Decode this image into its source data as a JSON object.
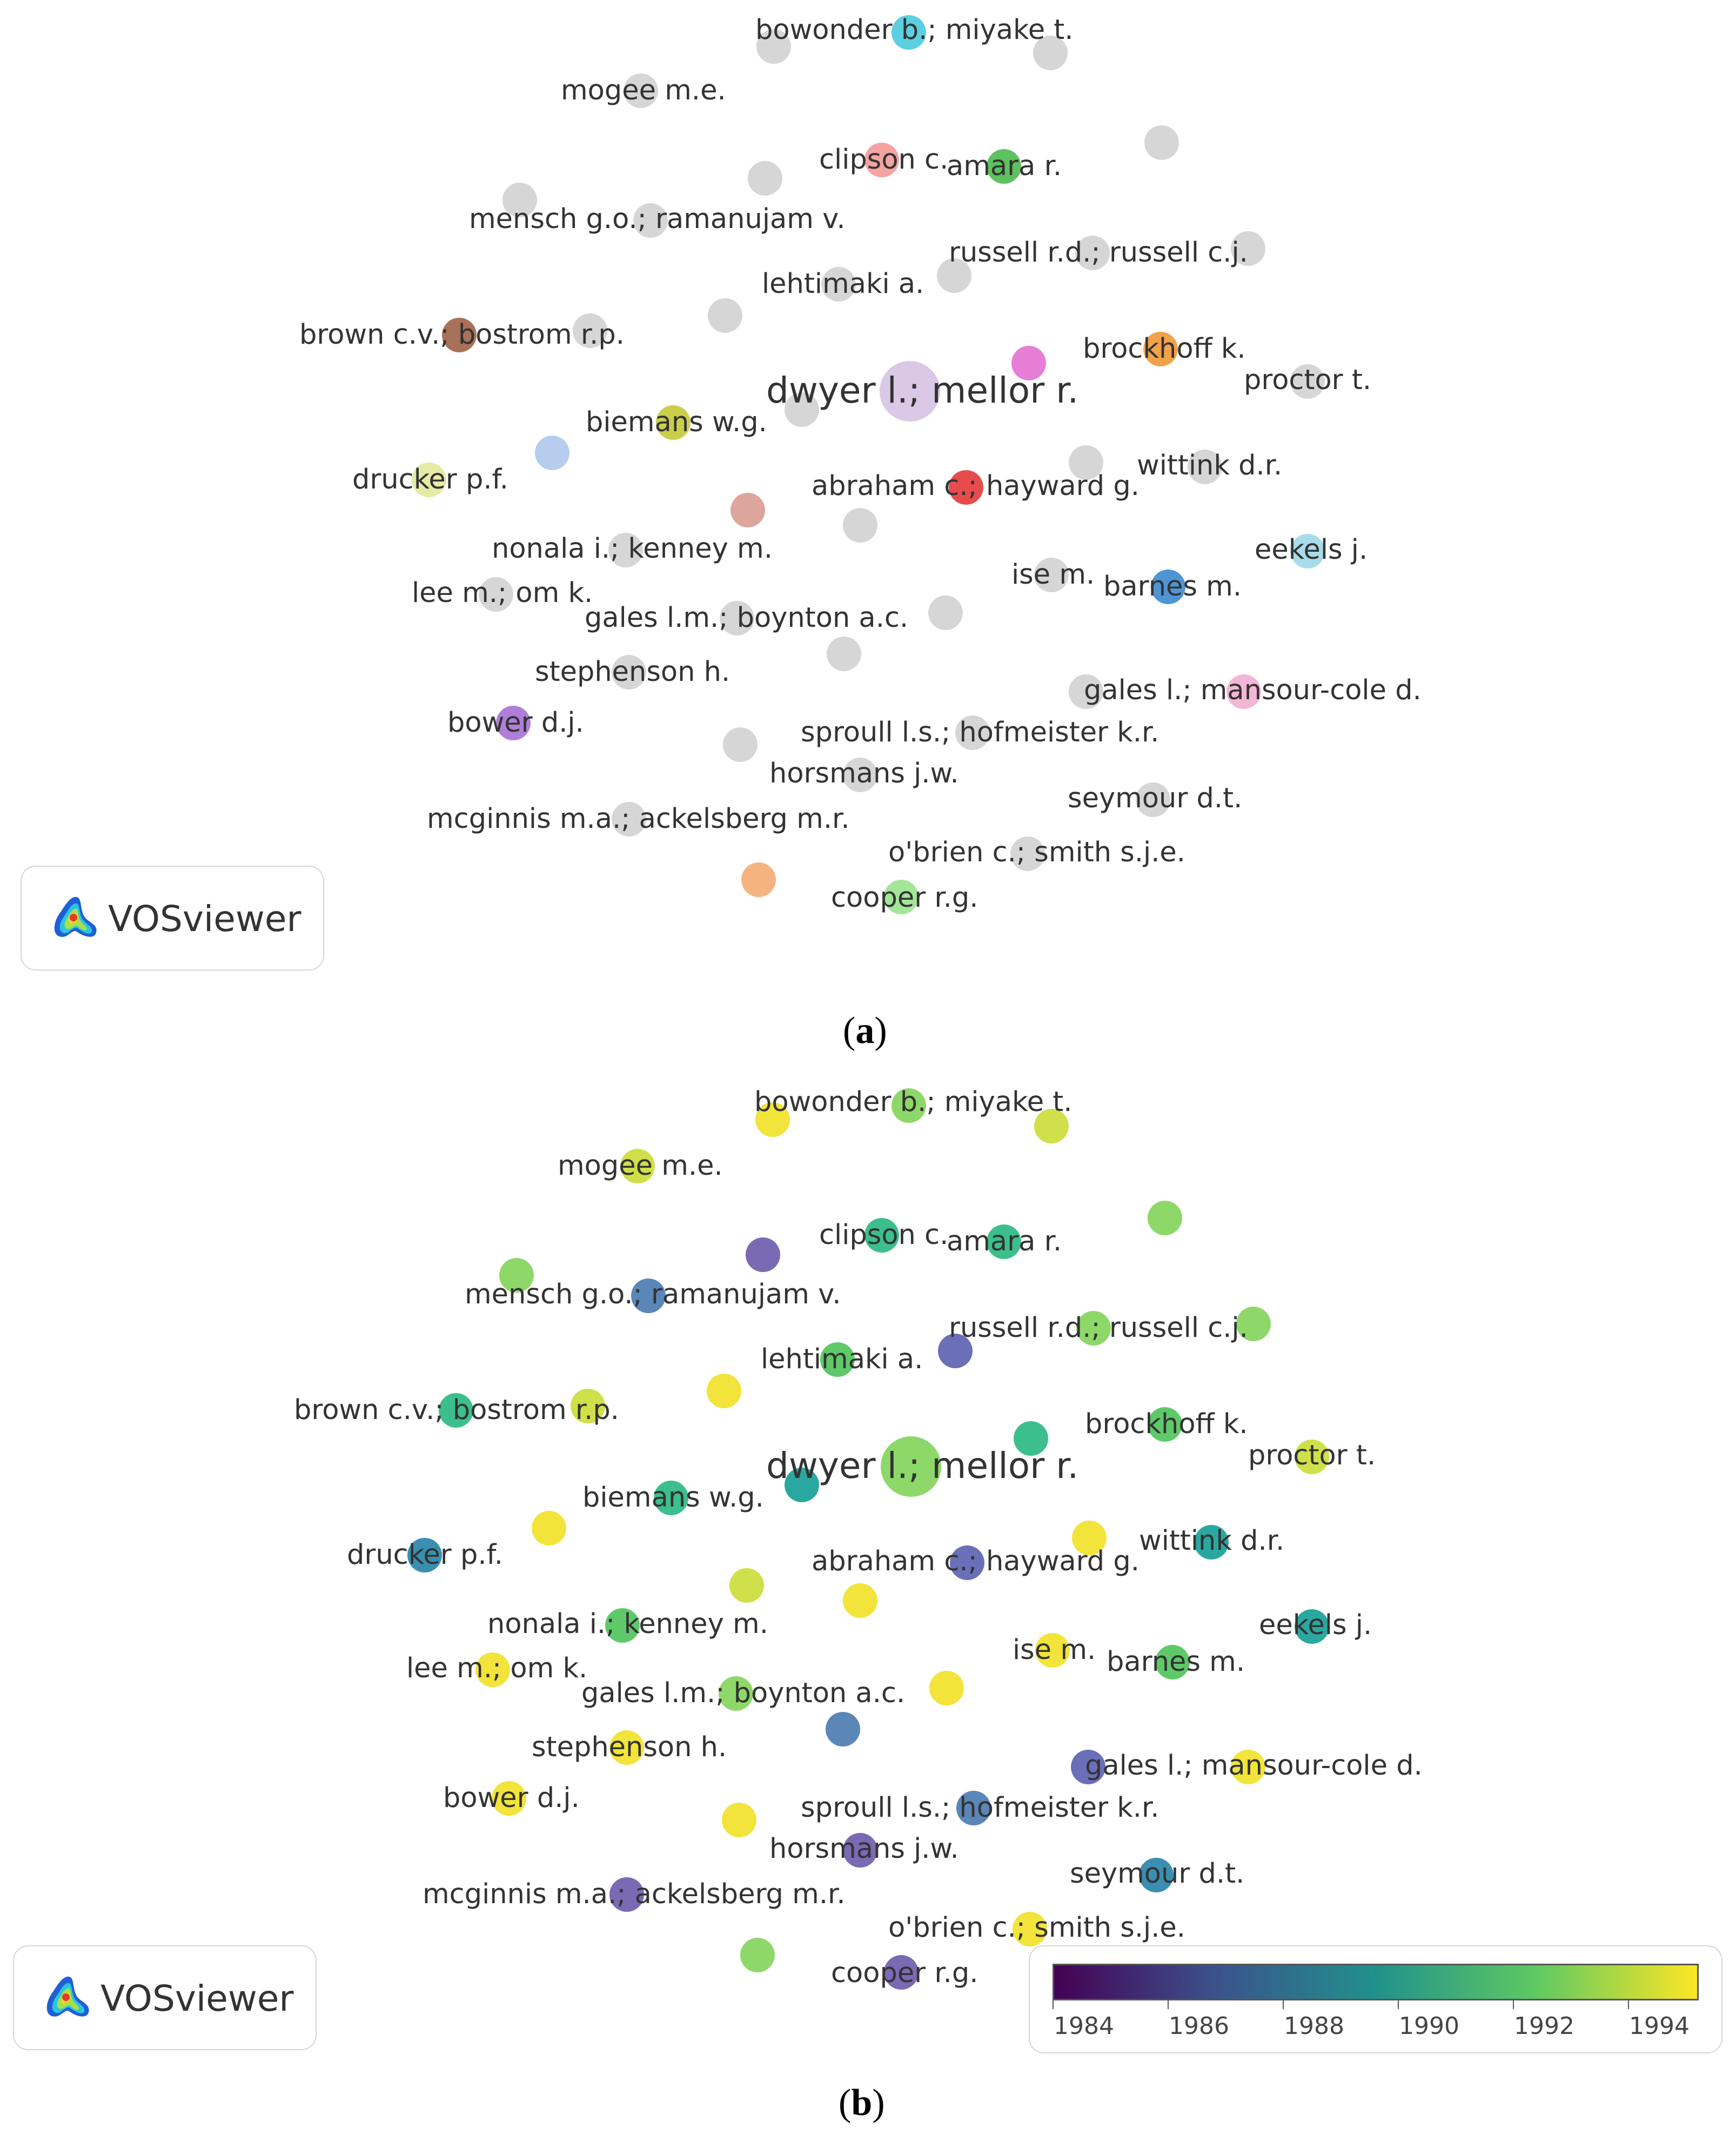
{
  "panel_a": {
    "caption_letter": "a",
    "logo_text": "VOSviewer",
    "labels": {
      "bowonder": "bowonder b.; miyake t.",
      "mogee": "mogee m.e.",
      "clipson": "clipson c.",
      "amara": "amara r.",
      "mensch": "mensch g.o.; ramanujam v.",
      "russell": "russell r.d.; russell c.j.",
      "lehtimaki": "lehtimaki a.",
      "brown": "brown c.v.; bostrom r.p.",
      "brockhoff": "brockhoff k.",
      "dwyer": "dwyer l.; mellor r.",
      "proctor": "proctor t.",
      "biemans": "biemans w.g.",
      "drucker": "drucker p.f.",
      "wittink": "wittink d.r.",
      "abraham": "abraham c.; hayward g.",
      "nonala": "nonala i.; kenney m.",
      "eekels": "eekels j.",
      "ise": "ise m.",
      "barnes": "barnes m.",
      "leem": "lee m.; om k.",
      "galeslm": "gales l.m.; boynton a.c.",
      "stephenson": "stephenson h.",
      "galesl": "gales l.; mansour-cole d.",
      "bower": "bower d.j.",
      "sproull": "sproull l.s.; hofmeister k.r.",
      "horsmans": "horsmans j.w.",
      "seymour": "seymour d.t.",
      "mcginnis": "mcginnis m.a.; ackelsberg m.r.",
      "obrien": "o'brien c.; smith s.j.e.",
      "cooper": "cooper r.g."
    },
    "node_colors": {
      "grey": "#d6d6d6",
      "bowonder": "#5ccfe0",
      "clipson": "#f4a3a3",
      "amara": "#5cc15e",
      "brown": "#a9705a",
      "pink_mid": "#e67ed6",
      "brockhoff": "#f2a24a",
      "dwyer": "#d9c8e6",
      "biemans": "#c9cf4a",
      "blue_light": "#b7cdee",
      "drucker": "#e5eaa7",
      "abraham": "#e74c4c",
      "salmon": "#dca69c",
      "eekels": "#a9dcea",
      "barnes": "#4f95d6",
      "galesl": "#f4b6d5",
      "bower": "#b07ed9",
      "orange": "#f5b47f",
      "cooper": "#a3e69a"
    }
  },
  "panel_b": {
    "caption_letter": "b",
    "logo_text": "VOSviewer",
    "legend": {
      "ticks": [
        "1984",
        "1986",
        "1988",
        "1990",
        "1992",
        "1994"
      ],
      "colormap": [
        "#440154",
        "#3b528b",
        "#21918c",
        "#5ec962",
        "#fde725"
      ]
    },
    "labels": {
      "bowonder": "bowonder b.; miyake t.",
      "mogee": "mogee m.e.",
      "clipson": "clipson c.",
      "amara": "amara r.",
      "mensch": "mensch g.o.; ramanujam v.",
      "russell": "russell r.d.; russell c.j.",
      "lehtimaki": "lehtimaki a.",
      "brown": "brown c.v.; bostrom r.p.",
      "brockhoff": "brockhoff k.",
      "dwyer": "dwyer l.; mellor r.",
      "proctor": "proctor t.",
      "biemans": "biemans w.g.",
      "drucker": "drucker p.f.",
      "wittink": "wittink d.r.",
      "abraham": "abraham c.; hayward g.",
      "nonala": "nonala i.; kenney m.",
      "eekels": "eekels j.",
      "ise": "ise m.",
      "barnes": "barnes m.",
      "leem": "lee m.; om k.",
      "galeslm": "gales l.m.; boynton a.c.",
      "stephenson": "stephenson h.",
      "galesl": "gales l.; mansour-cole d.",
      "bower": "bower d.j.",
      "sproull": "sproull l.s.; hofmeister k.r.",
      "horsmans": "horsmans j.w.",
      "seymour": "seymour d.t.",
      "mcginnis": "mcginnis m.a.; ackelsberg m.r.",
      "obrien": "o'brien c.; smith s.j.e.",
      "cooper": "cooper r.g."
    },
    "node_colors": {
      "yellow": "#f2e43a",
      "yellow_green": "#cfe04a",
      "light_green": "#8ed86a",
      "green": "#5fc96a",
      "teal_green": "#3cbf8c",
      "teal": "#2aa8a0",
      "blue_teal": "#3a8fb0",
      "steel_blue": "#5a86b8",
      "purple_blue": "#6a6fb8",
      "purple": "#7a6ab4"
    }
  }
}
